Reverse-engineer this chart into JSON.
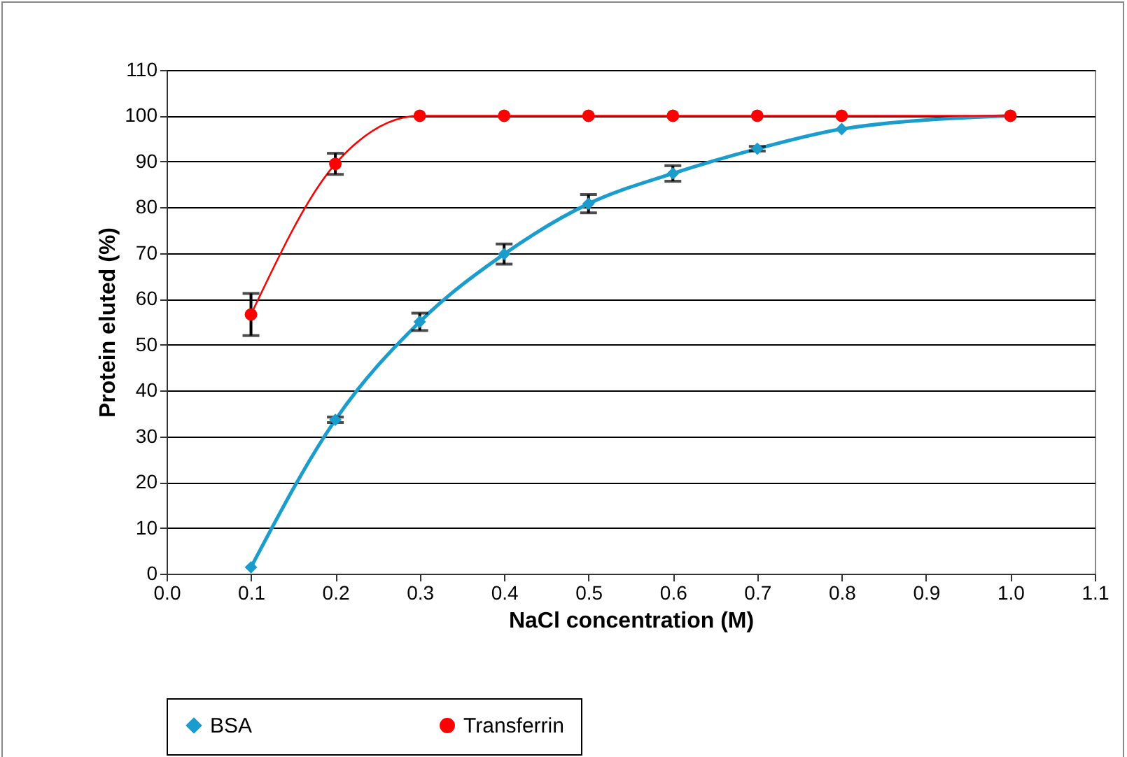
{
  "chart_data": {
    "type": "line",
    "xlabel": "NaCl concentration (M)",
    "ylabel": "Protein eluted (%)",
    "x": [
      0.1,
      0.2,
      0.3,
      0.4,
      0.5,
      0.6,
      0.7,
      0.8,
      1.0
    ],
    "series": [
      {
        "name": "BSA",
        "color": "#1a9ccc",
        "marker": "diamond",
        "values": [
          1.4,
          33.6,
          55.0,
          69.8,
          80.8,
          87.4,
          92.8,
          97.1,
          100
        ],
        "errors": [
          null,
          0.6,
          1.9,
          2.2,
          2.0,
          1.7,
          0.5,
          null,
          null
        ]
      },
      {
        "name": "Transferrin",
        "color": "#ff0000",
        "marker": "circle",
        "values": [
          56.6,
          89.5,
          100,
          100,
          100,
          100,
          100,
          100,
          100
        ],
        "errors": [
          4.6,
          2.3,
          null,
          null,
          null,
          null,
          null,
          null,
          null
        ]
      }
    ],
    "xlim": [
      0,
      1.1
    ],
    "xticks": [
      {
        "value": 0,
        "label": "0.0"
      },
      0.1,
      0.2,
      0.3,
      0.4,
      0.5,
      0.6,
      0.7,
      0.8,
      0.9,
      {
        "value": 1,
        "label": "1.0"
      },
      1.1
    ],
    "ylim": [
      0,
      110
    ],
    "yticks": [
      0,
      10,
      20,
      30,
      40,
      50,
      60,
      70,
      80,
      90,
      100,
      110
    ],
    "grid": "y",
    "legend": "bottom"
  }
}
